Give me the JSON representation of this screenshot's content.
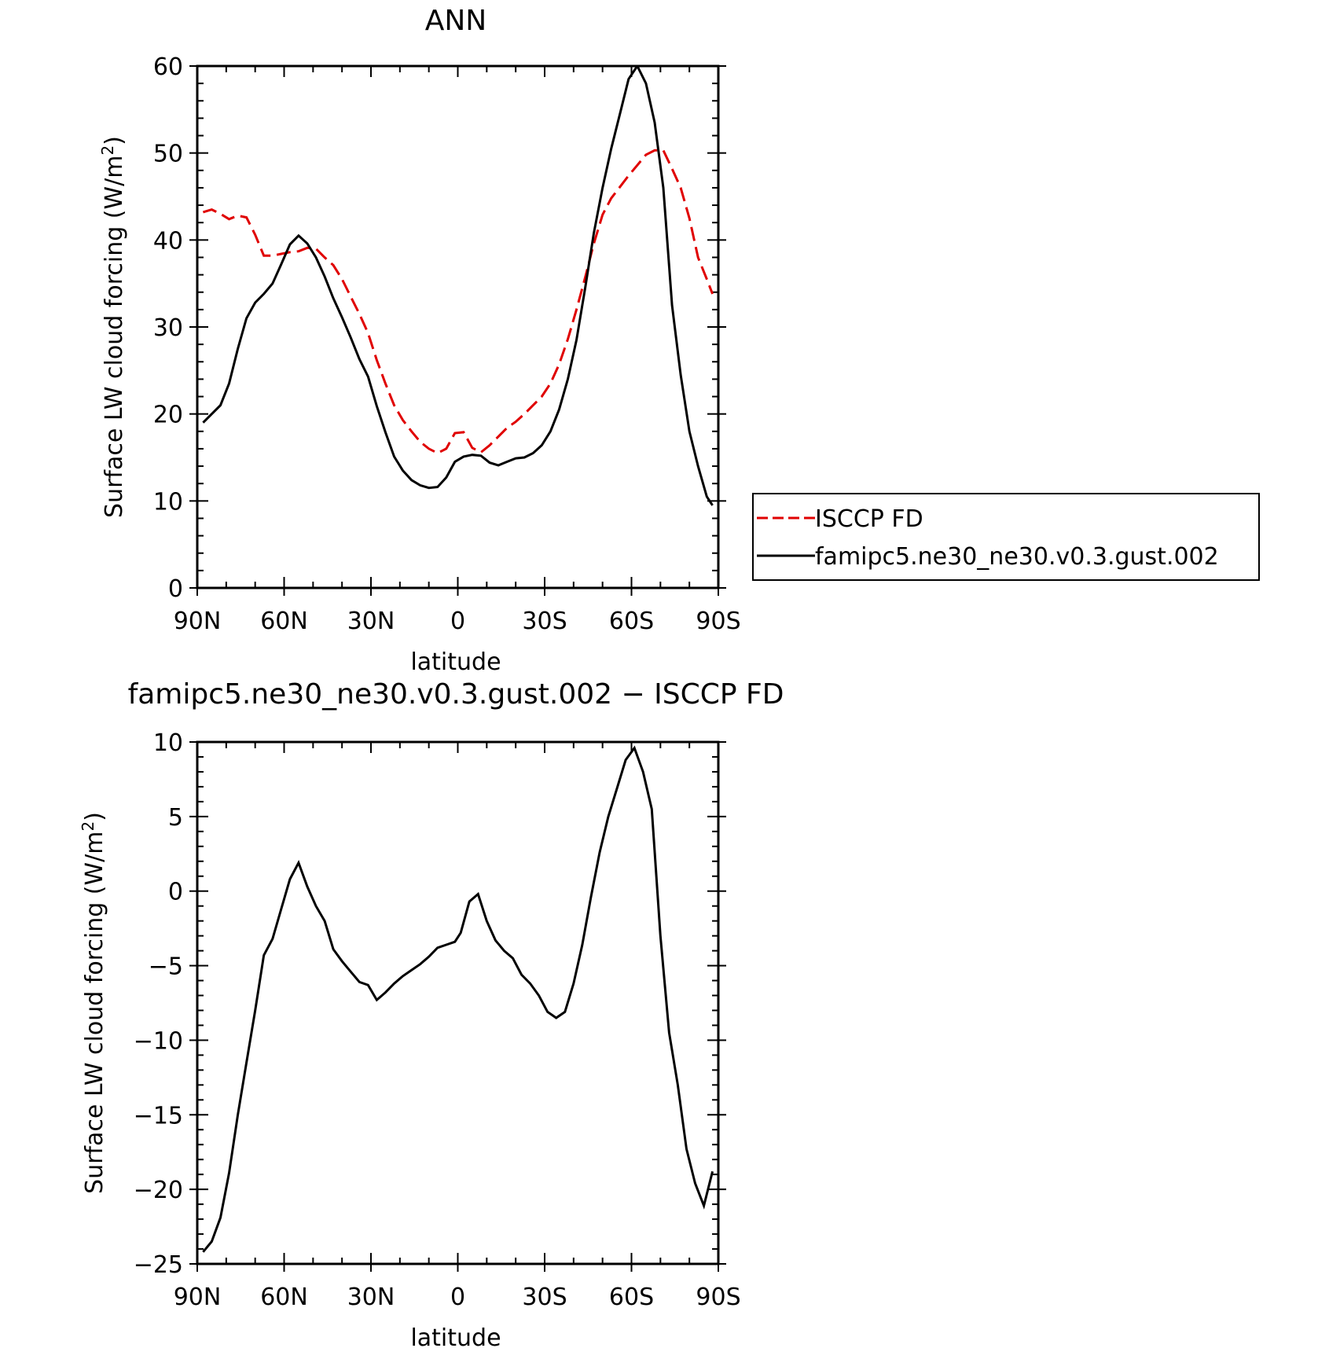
{
  "chart_data": [
    {
      "type": "line",
      "title": "ANN",
      "xlabel": "latitude",
      "ylabel": "Surface LW cloud forcing (W/m",
      "ylabel_sup": "2",
      "ylabel_close": ")",
      "xlim": [
        90,
        -90
      ],
      "ylim": [
        0,
        60
      ],
      "x_ticks": [
        {
          "value": 90,
          "label": "90N"
        },
        {
          "value": 60,
          "label": "60N"
        },
        {
          "value": 30,
          "label": "30N"
        },
        {
          "value": 0,
          "label": "0"
        },
        {
          "value": -30,
          "label": "30S"
        },
        {
          "value": -60,
          "label": "60S"
        },
        {
          "value": -90,
          "label": "90S"
        }
      ],
      "y_ticks": [
        0,
        10,
        20,
        30,
        40,
        50,
        60
      ],
      "grid": false,
      "legend": {
        "placement": "right",
        "entries": [
          {
            "name": "ISCCP FD",
            "color": "#e00000",
            "dash": "dashed"
          },
          {
            "name": "famipc5.ne30_ne30.v0.3.gust.002",
            "color": "#000000",
            "dash": "solid"
          }
        ]
      },
      "series": [
        {
          "name": "ISCCP FD",
          "color": "#e00000",
          "dash": "dashed",
          "x": [
            88,
            85,
            82,
            79,
            76,
            73,
            70,
            67,
            64,
            61,
            58,
            55,
            52,
            49,
            46,
            43,
            40,
            37,
            34,
            31,
            28,
            25,
            22,
            19,
            16,
            13,
            10,
            7,
            4,
            1,
            -2,
            -5,
            -8,
            -11,
            -14,
            -17,
            -20,
            -23,
            -26,
            -29,
            -32,
            -35,
            -38,
            -41,
            -44,
            -47,
            -50,
            -53,
            -56,
            -59,
            -62,
            -65,
            -68,
            -71,
            -74,
            -77,
            -80,
            -83,
            -86,
            -88
          ],
          "y": [
            43.2,
            43.5,
            43.0,
            42.4,
            42.8,
            42.6,
            40.6,
            38.2,
            38.2,
            38.4,
            38.6,
            38.7,
            39.1,
            39.0,
            38.0,
            37.1,
            35.5,
            33.5,
            31.5,
            29.3,
            26.2,
            23.5,
            21.0,
            19.3,
            18.0,
            16.8,
            16.0,
            15.5,
            16.0,
            17.8,
            17.9,
            16.1,
            15.6,
            16.4,
            17.4,
            18.4,
            19.1,
            20.0,
            21.0,
            22.0,
            23.5,
            25.7,
            28.6,
            32.0,
            35.7,
            39.6,
            42.9,
            44.8,
            46.1,
            47.4,
            48.6,
            49.8,
            50.3,
            50.3,
            48.2,
            46.0,
            42.5,
            38.0,
            35.5,
            33.8
          ]
        },
        {
          "name": "famipc5.ne30_ne30.v0.3.gust.002",
          "color": "#000000",
          "dash": "solid",
          "x": [
            88,
            85,
            82,
            79,
            76,
            73,
            70,
            67,
            64,
            61,
            58,
            55,
            52,
            49,
            46,
            43,
            40,
            37,
            34,
            31,
            28,
            25,
            22,
            19,
            16,
            13,
            10,
            7,
            4,
            1,
            -2,
            -5,
            -8,
            -11,
            -14,
            -17,
            -20,
            -23,
            -26,
            -29,
            -32,
            -35,
            -38,
            -41,
            -44,
            -47,
            -50,
            -53,
            -56,
            -59,
            -62,
            -65,
            -68,
            -71,
            -74,
            -77,
            -80,
            -83,
            -86,
            -88
          ],
          "y": [
            19.0,
            20.0,
            21.0,
            23.5,
            27.5,
            31.0,
            32.8,
            33.8,
            35.0,
            37.2,
            39.5,
            40.5,
            39.6,
            38.0,
            35.8,
            33.3,
            31.1,
            28.8,
            26.3,
            24.3,
            20.9,
            17.9,
            15.1,
            13.5,
            12.4,
            11.8,
            11.5,
            11.6,
            12.7,
            14.5,
            15.1,
            15.3,
            15.2,
            14.4,
            14.1,
            14.5,
            14.9,
            15.0,
            15.5,
            16.4,
            18.0,
            20.5,
            24.0,
            28.5,
            34.5,
            40.8,
            46.0,
            50.5,
            54.5,
            58.5,
            60.0,
            58.0,
            53.5,
            46.0,
            32.5,
            24.5,
            18.0,
            14.0,
            10.5,
            9.5
          ]
        }
      ]
    },
    {
      "type": "line",
      "title": "famipc5.ne30_ne30.v0.3.gust.002 − ISCCP FD",
      "xlabel": "latitude",
      "ylabel": "Surface LW cloud forcing (W/m",
      "ylabel_sup": "2",
      "ylabel_close": ")",
      "xlim": [
        90,
        -90
      ],
      "ylim": [
        -25,
        10
      ],
      "x_ticks": [
        {
          "value": 90,
          "label": "90N"
        },
        {
          "value": 60,
          "label": "60N"
        },
        {
          "value": 30,
          "label": "30N"
        },
        {
          "value": 0,
          "label": "0"
        },
        {
          "value": -30,
          "label": "30S"
        },
        {
          "value": -60,
          "label": "60S"
        },
        {
          "value": -90,
          "label": "90S"
        }
      ],
      "y_ticks": [
        {
          "value": 10,
          "label": "10"
        },
        {
          "value": 5,
          "label": "5"
        },
        {
          "value": 0,
          "label": "0"
        },
        {
          "value": -5,
          "label": "−5"
        },
        {
          "value": -10,
          "label": "−10"
        },
        {
          "value": -15,
          "label": "−15"
        },
        {
          "value": -20,
          "label": "−20"
        },
        {
          "value": -25,
          "label": "−25"
        }
      ],
      "grid": false,
      "series": [
        {
          "name": "famipc5.ne30_ne30.v0.3.gust.002 − ISCCP FD",
          "color": "#000000",
          "dash": "solid",
          "x": [
            88,
            85,
            82,
            79,
            76,
            73,
            70,
            67,
            64,
            61,
            58,
            55,
            52,
            49,
            46,
            43,
            40,
            37,
            34,
            31,
            28,
            25,
            22,
            19,
            16,
            13,
            10,
            7,
            4,
            1,
            -1,
            -4,
            -7,
            -10,
            -13,
            -16,
            -19,
            -22,
            -25,
            -28,
            -31,
            -34,
            -37,
            -40,
            -43,
            -46,
            -49,
            -52,
            -55,
            -58,
            -61,
            -64,
            -67,
            -70,
            -73,
            -76,
            -79,
            -82,
            -85,
            -88
          ],
          "y": [
            -24.2,
            -23.5,
            -21.9,
            -18.9,
            -15.0,
            -11.5,
            -8.0,
            -4.3,
            -3.2,
            -1.2,
            0.8,
            1.9,
            0.3,
            -1.0,
            -2.0,
            -3.9,
            -4.7,
            -5.4,
            -6.1,
            -6.3,
            -7.3,
            -6.8,
            -6.2,
            -5.7,
            -5.3,
            -4.9,
            -4.4,
            -3.8,
            -3.6,
            -3.4,
            -2.8,
            -0.7,
            -0.2,
            -2.0,
            -3.3,
            -4.0,
            -4.5,
            -5.6,
            -6.2,
            -7.0,
            -8.1,
            -8.5,
            -8.1,
            -6.2,
            -3.6,
            -0.4,
            2.6,
            5.0,
            6.9,
            8.8,
            9.6,
            8.0,
            5.5,
            -3.0,
            -9.5,
            -13.0,
            -17.3,
            -19.6,
            -21.1,
            -18.8
          ]
        }
      ]
    }
  ]
}
